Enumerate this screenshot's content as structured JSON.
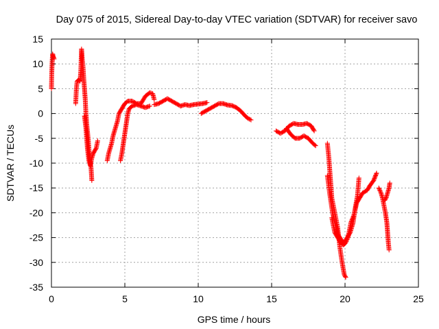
{
  "chart_data": {
    "type": "scatter",
    "title": "Day 075 of 2015, Sidereal Day-to-day VTEC variation (SDTVAR) for receiver savo",
    "xlabel": "GPS time / hours",
    "ylabel": "SDTVAR / TECUs",
    "xlim": [
      0,
      25
    ],
    "ylim": [
      -35,
      15
    ],
    "xticks": [
      "0",
      "5",
      "10",
      "15",
      "20",
      "25"
    ],
    "yticks": [
      "15",
      "10",
      "5",
      "0",
      "-5",
      "-10",
      "-15",
      "-20",
      "-25",
      "-30",
      "-35"
    ],
    "grid": true,
    "marker": "+",
    "color": "#ff0000",
    "series": [
      {
        "name": "SDTVAR",
        "segments": [
          [
            [
              0.0,
              5.0
            ],
            [
              0.02,
              8.0
            ],
            [
              0.05,
              10.5
            ],
            [
              0.08,
              12.0
            ],
            [
              0.12,
              11.5
            ],
            [
              0.18,
              11.0
            ]
          ],
          [
            [
              1.65,
              2.0
            ],
            [
              1.7,
              5.0
            ],
            [
              1.75,
              6.5
            ],
            [
              1.85,
              6.8
            ],
            [
              1.95,
              6.5
            ],
            [
              2.0,
              8.5
            ],
            [
              2.05,
              13.0
            ],
            [
              2.1,
              11.0
            ],
            [
              2.15,
              9.5
            ],
            [
              2.2,
              7.0
            ],
            [
              2.25,
              5.0
            ],
            [
              2.3,
              3.0
            ],
            [
              2.35,
              0.0
            ],
            [
              2.4,
              -2.0
            ],
            [
              2.5,
              -5.0
            ],
            [
              2.6,
              -9.0
            ],
            [
              2.7,
              -11.0
            ],
            [
              2.75,
              -13.5
            ]
          ],
          [
            [
              2.25,
              -0.5
            ],
            [
              2.35,
              -3.0
            ],
            [
              2.45,
              -7.0
            ],
            [
              2.55,
              -9.5
            ],
            [
              2.65,
              -10.5
            ],
            [
              2.75,
              -9.0
            ],
            [
              2.85,
              -8.0
            ],
            [
              2.95,
              -7.5
            ],
            [
              3.05,
              -7.0
            ],
            [
              3.15,
              -5.5
            ]
          ],
          [
            [
              3.8,
              -9.5
            ],
            [
              3.9,
              -8.0
            ],
            [
              4.0,
              -7.0
            ],
            [
              4.1,
              -6.0
            ],
            [
              4.2,
              -4.5
            ],
            [
              4.3,
              -3.5
            ],
            [
              4.4,
              -2.5
            ],
            [
              4.5,
              -1.5
            ],
            [
              4.6,
              0.0
            ],
            [
              4.7,
              0.5
            ],
            [
              4.8,
              1.0
            ],
            [
              4.9,
              1.5
            ],
            [
              5.0,
              2.0
            ],
            [
              5.2,
              2.5
            ],
            [
              5.5,
              2.5
            ],
            [
              5.8,
              2.0
            ],
            [
              6.1,
              2.0
            ],
            [
              6.4,
              3.5
            ],
            [
              6.7,
              4.2
            ],
            [
              6.9,
              4.0
            ],
            [
              7.0,
              2.8
            ]
          ],
          [
            [
              4.7,
              -9.5
            ],
            [
              4.8,
              -8.0
            ],
            [
              4.9,
              -6.0
            ],
            [
              5.0,
              -4.0
            ],
            [
              5.1,
              -2.0
            ],
            [
              5.2,
              0.0
            ],
            [
              5.3,
              1.0
            ],
            [
              5.5,
              1.5
            ],
            [
              5.8,
              1.8
            ],
            [
              6.1,
              1.5
            ],
            [
              6.4,
              1.2
            ],
            [
              6.7,
              1.5
            ]
          ],
          [
            [
              7.0,
              1.8
            ],
            [
              7.3,
              2.0
            ],
            [
              7.6,
              2.5
            ],
            [
              7.9,
              3.0
            ],
            [
              8.2,
              2.5
            ],
            [
              8.5,
              2.0
            ],
            [
              8.8,
              1.5
            ],
            [
              9.1,
              1.8
            ],
            [
              9.4,
              1.6
            ],
            [
              9.7,
              1.8
            ],
            [
              10.0,
              1.9
            ],
            [
              10.3,
              2.0
            ],
            [
              10.6,
              2.2
            ]
          ],
          [
            [
              10.2,
              0.0
            ],
            [
              10.5,
              0.5
            ],
            [
              10.8,
              1.0
            ],
            [
              11.1,
              1.5
            ],
            [
              11.4,
              2.0
            ],
            [
              11.7,
              2.0
            ],
            [
              12.0,
              1.7
            ],
            [
              12.3,
              1.6
            ],
            [
              12.6,
              1.2
            ],
            [
              12.9,
              0.5
            ],
            [
              13.2,
              -0.5
            ],
            [
              13.4,
              -1.0
            ],
            [
              13.6,
              -1.3
            ]
          ],
          [
            [
              15.3,
              -3.5
            ],
            [
              15.6,
              -4.0
            ],
            [
              15.9,
              -3.5
            ],
            [
              16.2,
              -2.5
            ],
            [
              16.5,
              -2.0
            ],
            [
              16.8,
              -2.2
            ],
            [
              17.1,
              -2.2
            ],
            [
              17.4,
              -2.0
            ],
            [
              17.7,
              -2.5
            ],
            [
              17.9,
              -3.5
            ]
          ],
          [
            [
              16.0,
              -3.0
            ],
            [
              16.3,
              -4.2
            ],
            [
              16.6,
              -5.0
            ],
            [
              16.9,
              -5.0
            ],
            [
              17.2,
              -4.5
            ],
            [
              17.5,
              -5.0
            ],
            [
              17.8,
              -6.0
            ],
            [
              18.0,
              -6.5
            ]
          ],
          [
            [
              18.8,
              -6.0
            ],
            [
              18.9,
              -9.0
            ],
            [
              19.0,
              -13.0
            ],
            [
              19.1,
              -17.0
            ],
            [
              19.3,
              -20.0
            ],
            [
              19.5,
              -23.0
            ],
            [
              19.65,
              -27.0
            ],
            [
              19.8,
              -30.0
            ],
            [
              19.95,
              -32.5
            ],
            [
              20.05,
              -33.0
            ]
          ],
          [
            [
              18.8,
              -12.5
            ],
            [
              18.95,
              -16.0
            ],
            [
              19.15,
              -20.0
            ],
            [
              19.35,
              -22.5
            ],
            [
              19.55,
              -24.5
            ],
            [
              19.75,
              -25.5
            ],
            [
              19.95,
              -26.0
            ],
            [
              20.15,
              -25.0
            ],
            [
              20.35,
              -24.0
            ],
            [
              20.55,
              -22.0
            ],
            [
              20.7,
              -19.0
            ],
            [
              20.85,
              -16.5
            ],
            [
              20.95,
              -13.0
            ]
          ],
          [
            [
              19.1,
              -21.0
            ],
            [
              19.3,
              -24.0
            ],
            [
              19.5,
              -25.0
            ],
            [
              19.7,
              -26.0
            ],
            [
              19.9,
              -26.5
            ],
            [
              20.05,
              -26.0
            ],
            [
              20.2,
              -25.0
            ],
            [
              20.4,
              -22.0
            ],
            [
              20.6,
              -20.5
            ],
            [
              20.8,
              -18.0
            ],
            [
              21.0,
              -17.0
            ],
            [
              21.2,
              -16.0
            ],
            [
              21.5,
              -15.5
            ],
            [
              21.7,
              -14.5
            ],
            [
              21.95,
              -13.5
            ],
            [
              22.15,
              -12.0
            ]
          ],
          [
            [
              22.3,
              -15.0
            ],
            [
              22.45,
              -16.0
            ],
            [
              22.55,
              -17.0
            ],
            [
              22.65,
              -18.5
            ],
            [
              22.75,
              -20.0
            ],
            [
              22.85,
              -22.0
            ],
            [
              22.9,
              -24.0
            ],
            [
              22.95,
              -26.0
            ],
            [
              23.0,
              -27.5
            ]
          ],
          [
            [
              22.7,
              -17.5
            ],
            [
              22.8,
              -17.0
            ],
            [
              22.9,
              -16.0
            ],
            [
              23.0,
              -15.0
            ],
            [
              23.05,
              -14.0
            ]
          ]
        ]
      }
    ]
  }
}
